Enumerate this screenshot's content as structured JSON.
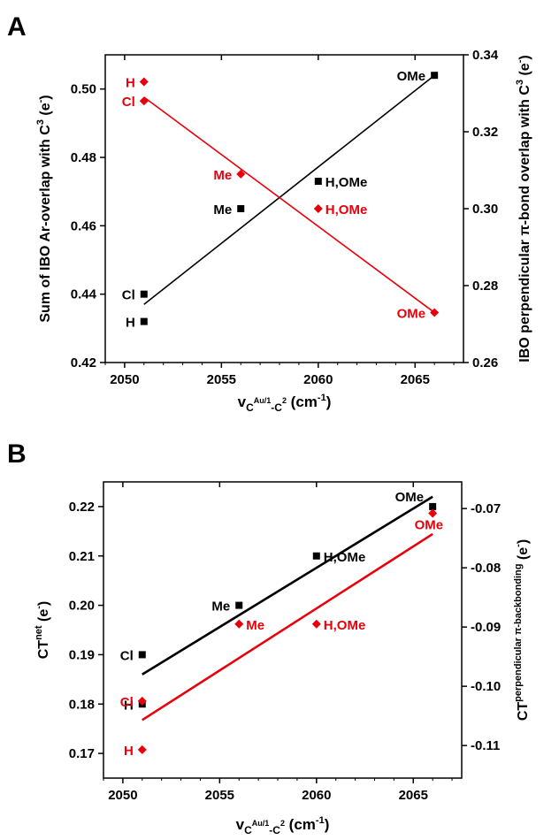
{
  "colors": {
    "black_series": "#000000",
    "red_series": "#e8000b"
  },
  "chart_data": [
    {
      "type": "scatter",
      "panel_label": "A",
      "xlabel_main": "v",
      "xlabel_sub": "C",
      "xlabel_sup": "Au/1",
      "xlabel_sub2": "-C",
      "xlabel_sup2": "2",
      "xlabel_unit": " (cm",
      "xlabel_unit_sup": "-1",
      "xlabel_unit_end": ")",
      "ylabel_left_main": "Sum of IBO Ar-overlap with C",
      "ylabel_left_sup": "3",
      "ylabel_left_unit": " (e",
      "ylabel_left_unit_sup": "-",
      "ylabel_left_end": ")",
      "ylabel_right_main": "IBO perpendicular π-bond overlap with C",
      "ylabel_right_sup": "3",
      "ylabel_right_unit": " (e",
      "ylabel_right_unit_sup": "-",
      "ylabel_right_end": ")",
      "xlim": [
        2049,
        2067.5
      ],
      "ylim_left": [
        0.42,
        0.51
      ],
      "ylim_right": [
        0.26,
        0.34
      ],
      "xticks": [
        "2050",
        "2055",
        "2060",
        "2065"
      ],
      "yticks_left": [
        "0.42",
        "0.44",
        "0.46",
        "0.48",
        "0.50"
      ],
      "yticks_right": [
        "0.26",
        "0.28",
        "0.30",
        "0.32",
        "0.34"
      ],
      "series": [
        {
          "axis": "left",
          "color": "#000000",
          "marker": "square",
          "points": [
            {
              "x": 2051,
              "y": 0.432,
              "label": "H"
            },
            {
              "x": 2051,
              "y": 0.44,
              "label": "Cl"
            },
            {
              "x": 2056,
              "y": 0.465,
              "label": "Me"
            },
            {
              "x": 2060,
              "y": 0.473,
              "label": "H,OMe"
            },
            {
              "x": 2066,
              "y": 0.504,
              "label": "OMe"
            }
          ],
          "fit": {
            "x0": 2051,
            "y0": 0.437,
            "x1": 2066,
            "y1": 0.504
          }
        },
        {
          "axis": "right",
          "color": "#e8000b",
          "marker": "diamond",
          "points": [
            {
              "x": 2051,
              "y": 0.333,
              "label": "H"
            },
            {
              "x": 2051,
              "y": 0.328,
              "label": "Cl"
            },
            {
              "x": 2056,
              "y": 0.309,
              "label": "Me"
            },
            {
              "x": 2060,
              "y": 0.3,
              "label": "H,OMe"
            },
            {
              "x": 2066,
              "y": 0.273,
              "label": "OMe"
            }
          ],
          "fit": {
            "x0": 2051,
            "y0": 0.329,
            "x1": 2066,
            "y1": 0.273
          }
        }
      ]
    },
    {
      "type": "scatter",
      "panel_label": "B",
      "xlabel_main": "v",
      "xlabel_sub": "C",
      "xlabel_sup": "Au/1",
      "xlabel_sub2": "-C",
      "xlabel_sup2": "2",
      "xlabel_unit": " (cm",
      "xlabel_unit_sup": "-1",
      "xlabel_unit_end": ")",
      "ylabel_left_main": "CT",
      "ylabel_left_sup": "net",
      "ylabel_left_unit": " (e",
      "ylabel_left_unit_sup": "-",
      "ylabel_left_end": ")",
      "ylabel_right_main": "CT",
      "ylabel_right_sup": "perpendicular π-backbonding",
      "ylabel_right_unit": " (e",
      "ylabel_right_unit_sup": "-",
      "ylabel_right_end": ")",
      "xlim": [
        2049,
        2067.5
      ],
      "ylim_left": [
        0.165,
        0.225
      ],
      "ylim_right": [
        -0.1155,
        -0.0655
      ],
      "xticks": [
        "2050",
        "2055",
        "2060",
        "2065"
      ],
      "yticks_left": [
        "0.17",
        "0.18",
        "0.19",
        "0.20",
        "0.21",
        "0.22"
      ],
      "yticks_right": [
        "-0.11",
        "-0.10",
        "-0.09",
        "-0.08",
        "-0.07"
      ],
      "series": [
        {
          "axis": "left",
          "color": "#000000",
          "marker": "square",
          "points": [
            {
              "x": 2051,
              "y": 0.19,
              "label": "Cl"
            },
            {
              "x": 2051,
              "y": 0.18,
              "label": "H"
            },
            {
              "x": 2056,
              "y": 0.2,
              "label": "Me"
            },
            {
              "x": 2060,
              "y": 0.21,
              "label": "H,OMe"
            },
            {
              "x": 2066,
              "y": 0.22,
              "label": "OMe"
            }
          ],
          "fit": {
            "x0": 2051,
            "y0": 0.186,
            "x1": 2066,
            "y1": 0.222
          }
        },
        {
          "axis": "right",
          "color": "#e8000b",
          "marker": "diamond",
          "points": [
            {
              "x": 2051,
              "y": -0.1025,
              "label": "Cl"
            },
            {
              "x": 2051,
              "y": -0.1107,
              "label": "H"
            },
            {
              "x": 2056,
              "y": -0.0895,
              "label": "Me"
            },
            {
              "x": 2060,
              "y": -0.0895,
              "label": "H,OMe"
            },
            {
              "x": 2066,
              "y": -0.0708,
              "label": "OMe"
            }
          ],
          "fit": {
            "x0": 2051,
            "y0": -0.1057,
            "x1": 2066,
            "y1": -0.0743
          }
        }
      ]
    }
  ]
}
